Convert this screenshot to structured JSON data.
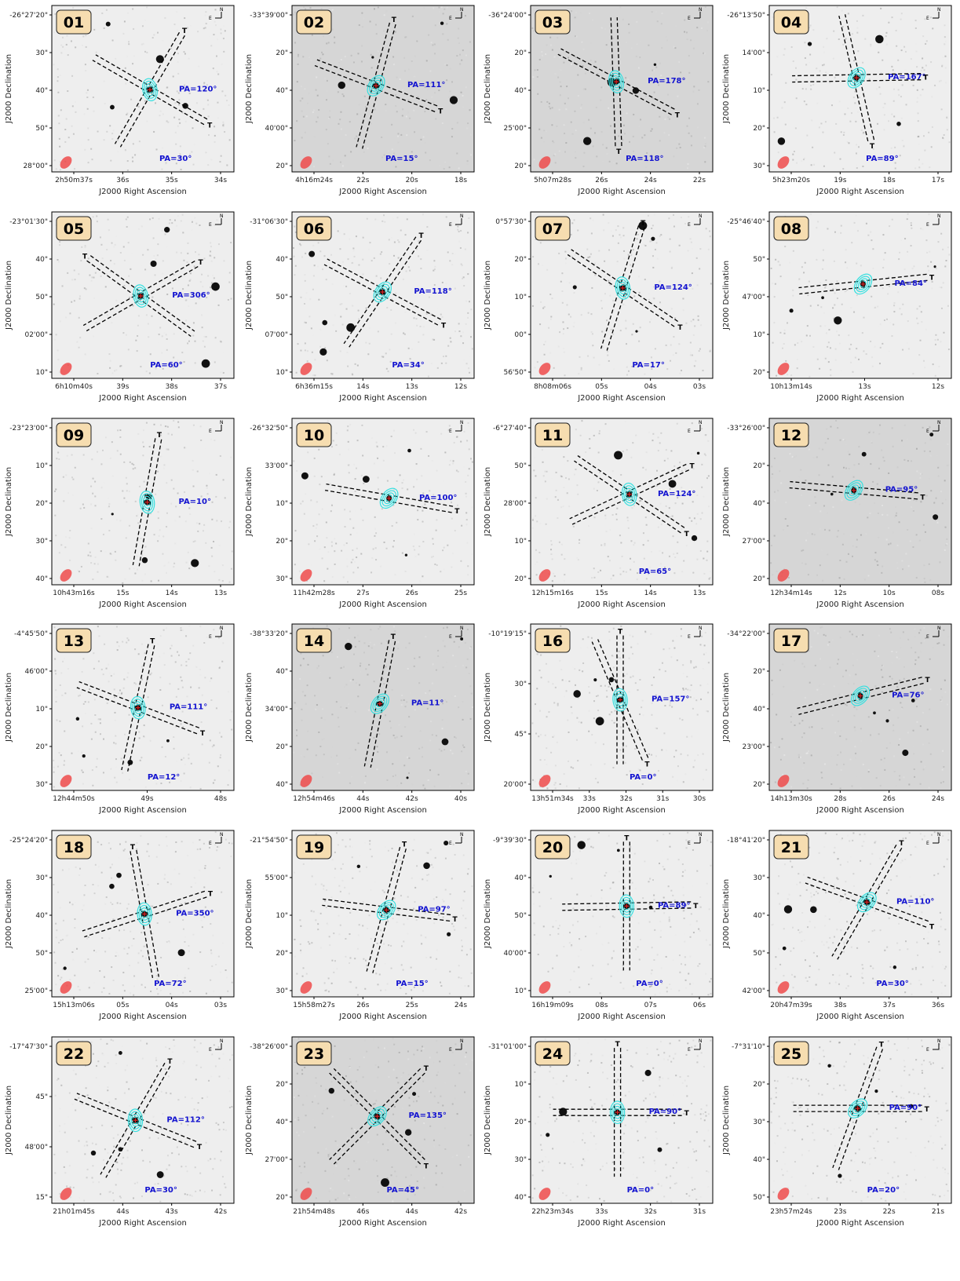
{
  "labels": {
    "xlabel": "J2000 Right Ascension",
    "ylabel": "J2000 Declination",
    "tail": "T",
    "north": "N",
    "east": "E"
  },
  "colors": {
    "contour": "#35e0e0",
    "pa_text": "#1414d0",
    "beam": "#ee4b4b",
    "badge_bg": "#f6ddb0",
    "badge_border": "#222222",
    "cross": "#dd2222"
  },
  "panels": [
    {
      "id": "01",
      "yticks": [
        "-26°27'20\"",
        "30\"",
        "40\"",
        "50\"",
        "28°00\""
      ],
      "xticks": [
        "2h50m37s",
        "36s",
        "35s",
        "34s"
      ],
      "pa": [
        {
          "label": "PA=120°",
          "angle": 120
        },
        {
          "label": "PA=30°",
          "angle": 30
        }
      ],
      "contours": true
    },
    {
      "id": "02",
      "yticks": [
        "-33°39'00\"",
        "20\"",
        "40\"",
        "40'00\"",
        "20\""
      ],
      "xticks": [
        "4h16m24s",
        "22s",
        "20s",
        "18s"
      ],
      "pa": [
        {
          "label": "PA=111°",
          "angle": 111
        },
        {
          "label": "PA=15°",
          "angle": 15
        }
      ],
      "contours": true
    },
    {
      "id": "03",
      "yticks": [
        "-36°24'00\"",
        "20\"",
        "40\"",
        "25'00\"",
        "20\""
      ],
      "xticks": [
        "5h07m28s",
        "26s",
        "24s",
        "22s"
      ],
      "pa": [
        {
          "label": "PA=178°",
          "angle": 178
        },
        {
          "label": "PA=118°",
          "angle": 118
        }
      ],
      "contours": true
    },
    {
      "id": "04",
      "yticks": [
        "-26°13'50\"",
        "14'00\"",
        "10\"",
        "20\"",
        "30\""
      ],
      "xticks": [
        "5h23m20s",
        "19s",
        "18s",
        "17s"
      ],
      "pa": [
        {
          "label": "PA=167°",
          "angle": 167
        },
        {
          "label": "PA=89°",
          "angle": 89
        }
      ],
      "contours": true
    },
    {
      "id": "05",
      "yticks": [
        "-23°01'30\"",
        "40\"",
        "50\"",
        "02'00\"",
        "10\""
      ],
      "xticks": [
        "6h10m40s",
        "39s",
        "38s",
        "37s"
      ],
      "pa": [
        {
          "label": "PA=306°",
          "angle": 306
        },
        {
          "label": "PA=60°",
          "angle": 60
        }
      ],
      "contours": true
    },
    {
      "id": "06",
      "yticks": [
        "-31°06'30\"",
        "40\"",
        "50\"",
        "07'00\"",
        "10\""
      ],
      "xticks": [
        "6h36m15s",
        "14s",
        "13s",
        "12s"
      ],
      "pa": [
        {
          "label": "PA=118°",
          "angle": 118
        },
        {
          "label": "PA=34°",
          "angle": 34
        }
      ],
      "contours": true
    },
    {
      "id": "07",
      "yticks": [
        "0°57'30\"",
        "20\"",
        "10\"",
        "00\"",
        "56'50\""
      ],
      "xticks": [
        "8h08m06s",
        "05s",
        "04s",
        "03s"
      ],
      "pa": [
        {
          "label": "PA=124°",
          "angle": 124
        },
        {
          "label": "PA=17°",
          "angle": 17
        }
      ],
      "contours": true
    },
    {
      "id": "08",
      "yticks": [
        "-25°46'40\"",
        "50\"",
        "47'00\"",
        "10\"",
        "20\""
      ],
      "xticks": [
        "10h13m14s",
        "13s",
        "12s"
      ],
      "pa": [
        {
          "label": "PA=84°",
          "angle": 84
        }
      ],
      "contours": true
    },
    {
      "id": "09",
      "yticks": [
        "-23°23'00\"",
        "10\"",
        "20\"",
        "30\"",
        "40\""
      ],
      "xticks": [
        "10h43m16s",
        "15s",
        "14s",
        "13s"
      ],
      "pa": [
        {
          "label": "PA=10°",
          "angle": 10
        }
      ],
      "contours": true
    },
    {
      "id": "10",
      "yticks": [
        "-26°32'50\"",
        "33'00\"",
        "10\"",
        "20\"",
        "30\""
      ],
      "xticks": [
        "11h42m28s",
        "27s",
        "26s",
        "25s"
      ],
      "pa": [
        {
          "label": "PA=100°",
          "angle": 100
        }
      ],
      "contours": true
    },
    {
      "id": "11",
      "yticks": [
        "-6°27'40\"",
        "50\"",
        "28'00\"",
        "10\"",
        "20\""
      ],
      "xticks": [
        "12h15m16s",
        "15s",
        "14s",
        "13s"
      ],
      "pa": [
        {
          "label": "PA=124°",
          "angle": 124
        },
        {
          "label": "PA=65°",
          "angle": 65
        }
      ],
      "contours": true
    },
    {
      "id": "12",
      "yticks": [
        "-33°26'00\"",
        "20\"",
        "40\"",
        "27'00\"",
        "20\""
      ],
      "xticks": [
        "12h34m14s",
        "12s",
        "10s",
        "08s"
      ],
      "pa": [
        {
          "label": "PA=95°",
          "angle": 95
        }
      ],
      "contours": true
    },
    {
      "id": "13",
      "yticks": [
        "-4°45'50\"",
        "46'00\"",
        "10\"",
        "20\"",
        "30\""
      ],
      "xticks": [
        "12h44m50s",
        "49s",
        "48s"
      ],
      "pa": [
        {
          "label": "PA=111°",
          "angle": 111
        },
        {
          "label": "PA=12°",
          "angle": 12
        }
      ],
      "contours": true
    },
    {
      "id": "14",
      "yticks": [
        "-38°33'20\"",
        "40\"",
        "34'00\"",
        "20\"",
        "40\""
      ],
      "xticks": [
        "12h54m46s",
        "44s",
        "42s",
        "40s"
      ],
      "pa": [
        {
          "label": "PA=11°",
          "angle": 11
        }
      ],
      "contours": true
    },
    {
      "id": "16",
      "yticks": [
        "-10°19'15\"",
        "30\"",
        "45\"",
        "20'00\""
      ],
      "xticks": [
        "13h51m34s",
        "33s",
        "32s",
        "31s",
        "30s"
      ],
      "pa": [
        {
          "label": "PA=157°",
          "angle": 157
        },
        {
          "label": "PA=0°",
          "angle": 0
        }
      ],
      "contours": true
    },
    {
      "id": "17",
      "yticks": [
        "-34°22'00\"",
        "20\"",
        "40\"",
        "23'00\"",
        "20\""
      ],
      "xticks": [
        "14h13m30s",
        "28s",
        "26s",
        "24s"
      ],
      "pa": [
        {
          "label": "PA=76°",
          "angle": 76
        }
      ],
      "contours": true
    },
    {
      "id": "18",
      "yticks": [
        "-25°24'20\"",
        "30\"",
        "40\"",
        "50\"",
        "25'00\""
      ],
      "xticks": [
        "15h13m06s",
        "05s",
        "04s",
        "03s"
      ],
      "pa": [
        {
          "label": "PA=350°",
          "angle": 350
        },
        {
          "label": "PA=72°",
          "angle": 72
        }
      ],
      "contours": true
    },
    {
      "id": "19",
      "yticks": [
        "-21°54'50\"",
        "55'00\"",
        "10\"",
        "20\"",
        "30\""
      ],
      "xticks": [
        "15h58m27s",
        "26s",
        "25s",
        "24s"
      ],
      "pa": [
        {
          "label": "PA=97°",
          "angle": 97
        },
        {
          "label": "PA=15°",
          "angle": 15
        }
      ],
      "contours": true
    },
    {
      "id": "20",
      "yticks": [
        "-9°39'30\"",
        "40\"",
        "50\"",
        "40'00\"",
        "10\""
      ],
      "xticks": [
        "16h19m09s",
        "08s",
        "07s",
        "06s"
      ],
      "pa": [
        {
          "label": "PA=89°",
          "angle": 89
        },
        {
          "label": "PA=0°",
          "angle": 0
        }
      ],
      "contours": true
    },
    {
      "id": "21",
      "yticks": [
        "-18°41'20\"",
        "30\"",
        "40\"",
        "50\"",
        "42'00\""
      ],
      "xticks": [
        "20h47m39s",
        "38s",
        "37s",
        "36s"
      ],
      "pa": [
        {
          "label": "PA=110°",
          "angle": 110
        },
        {
          "label": "PA=30°",
          "angle": 30
        }
      ],
      "contours": true
    },
    {
      "id": "22",
      "yticks": [
        "-17°47'30\"",
        "45\"",
        "48'00\"",
        "15\""
      ],
      "xticks": [
        "21h01m45s",
        "44s",
        "43s",
        "42s"
      ],
      "pa": [
        {
          "label": "PA=112°",
          "angle": 112
        },
        {
          "label": "PA=30°",
          "angle": 30
        }
      ],
      "contours": true
    },
    {
      "id": "23",
      "yticks": [
        "-38°26'00\"",
        "20\"",
        "40\"",
        "27'00\"",
        "20\""
      ],
      "xticks": [
        "21h54m48s",
        "46s",
        "44s",
        "42s"
      ],
      "pa": [
        {
          "label": "PA=135°",
          "angle": 135
        },
        {
          "label": "PA=45°",
          "angle": 45
        }
      ],
      "contours": true
    },
    {
      "id": "24",
      "yticks": [
        "-31°01'00\"",
        "10\"",
        "20\"",
        "30\"",
        "40\""
      ],
      "xticks": [
        "22h23m34s",
        "33s",
        "32s",
        "31s"
      ],
      "pa": [
        {
          "label": "PA=90°",
          "angle": 90
        },
        {
          "label": "PA=0°",
          "angle": 0
        }
      ],
      "contours": true
    },
    {
      "id": "25",
      "yticks": [
        "-7°31'10\"",
        "20\"",
        "30\"",
        "40\"",
        "50\""
      ],
      "xticks": [
        "23h57m24s",
        "23s",
        "22s",
        "21s"
      ],
      "pa": [
        {
          "label": "PA=90°",
          "angle": 90
        },
        {
          "label": "PA=20°",
          "angle": 20
        }
      ],
      "contours": true
    }
  ]
}
